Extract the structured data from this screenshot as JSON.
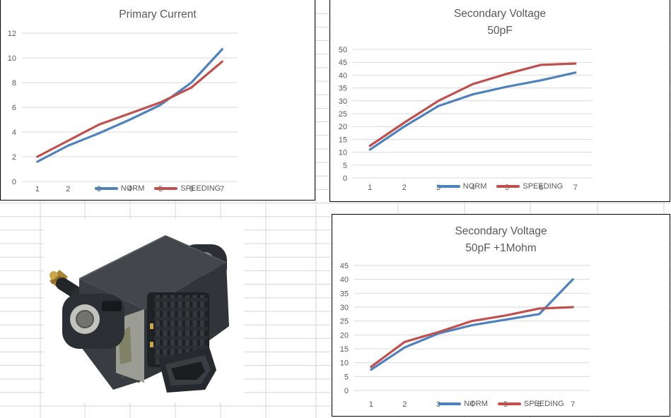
{
  "sheet": {
    "grid_color": "#d5d5d5",
    "chart_border_color": "#000000",
    "chart_gridline_color": "#d9d9d9",
    "text_color": "#595959"
  },
  "photo": {
    "description": "ignition coil product photo"
  },
  "chart_data": [
    {
      "type": "line",
      "title": "Primary Current",
      "x": [
        1,
        2,
        3,
        4,
        5,
        6,
        7
      ],
      "x_labels": [
        "1",
        "2",
        "3",
        "4",
        "5",
        "6",
        "7"
      ],
      "yticks": [
        0,
        2,
        4,
        6,
        8,
        10,
        12
      ],
      "ylim": [
        0,
        12
      ],
      "grid": true,
      "legend_position": "bottom",
      "series": [
        {
          "name": "NORM",
          "color": "#4F81BD",
          "values": [
            1.6,
            2.9,
            3.9,
            5.0,
            6.2,
            8.0,
            10.7
          ]
        },
        {
          "name": "SPEEDING",
          "color": "#C0504D",
          "values": [
            2.0,
            3.3,
            4.6,
            5.5,
            6.4,
            7.6,
            9.7
          ]
        }
      ]
    },
    {
      "type": "line",
      "title": "Secondary Voltage",
      "subtitle": "50pF",
      "x": [
        1,
        2,
        3,
        4,
        5,
        6,
        7
      ],
      "x_labels": [
        "1",
        "2",
        "3",
        "4",
        "5",
        "6",
        "7"
      ],
      "yticks": [
        0,
        5,
        10,
        15,
        20,
        25,
        30,
        35,
        40,
        45,
        50
      ],
      "ylim": [
        0,
        50
      ],
      "grid": true,
      "legend_position": "bottom",
      "series": [
        {
          "name": "NORM",
          "color": "#4F81BD",
          "values": [
            11,
            20,
            28,
            32.5,
            35.5,
            38,
            41
          ]
        },
        {
          "name": "SPEEDING",
          "color": "#C0504D",
          "values": [
            12.5,
            21.5,
            30,
            36.5,
            40.5,
            44,
            44.5
          ]
        }
      ]
    },
    {
      "type": "line",
      "title": "Secondary Voltage",
      "subtitle": "50pF +1Mohm",
      "x": [
        1,
        2,
        3,
        4,
        5,
        6,
        7
      ],
      "x_labels": [
        "1",
        "2",
        "3",
        "4",
        "5",
        "6",
        "7"
      ],
      "yticks": [
        0,
        5,
        10,
        15,
        20,
        25,
        30,
        35,
        40,
        45
      ],
      "ylim": [
        0,
        45
      ],
      "grid": true,
      "legend_position": "bottom",
      "series": [
        {
          "name": "NORM",
          "color": "#4F81BD",
          "values": [
            7.5,
            15.5,
            20.5,
            23.5,
            25.5,
            27.5,
            40
          ]
        },
        {
          "name": "SPEEDING",
          "color": "#C0504D",
          "values": [
            8.5,
            17.5,
            21,
            25,
            27,
            29.5,
            30
          ]
        }
      ]
    }
  ]
}
